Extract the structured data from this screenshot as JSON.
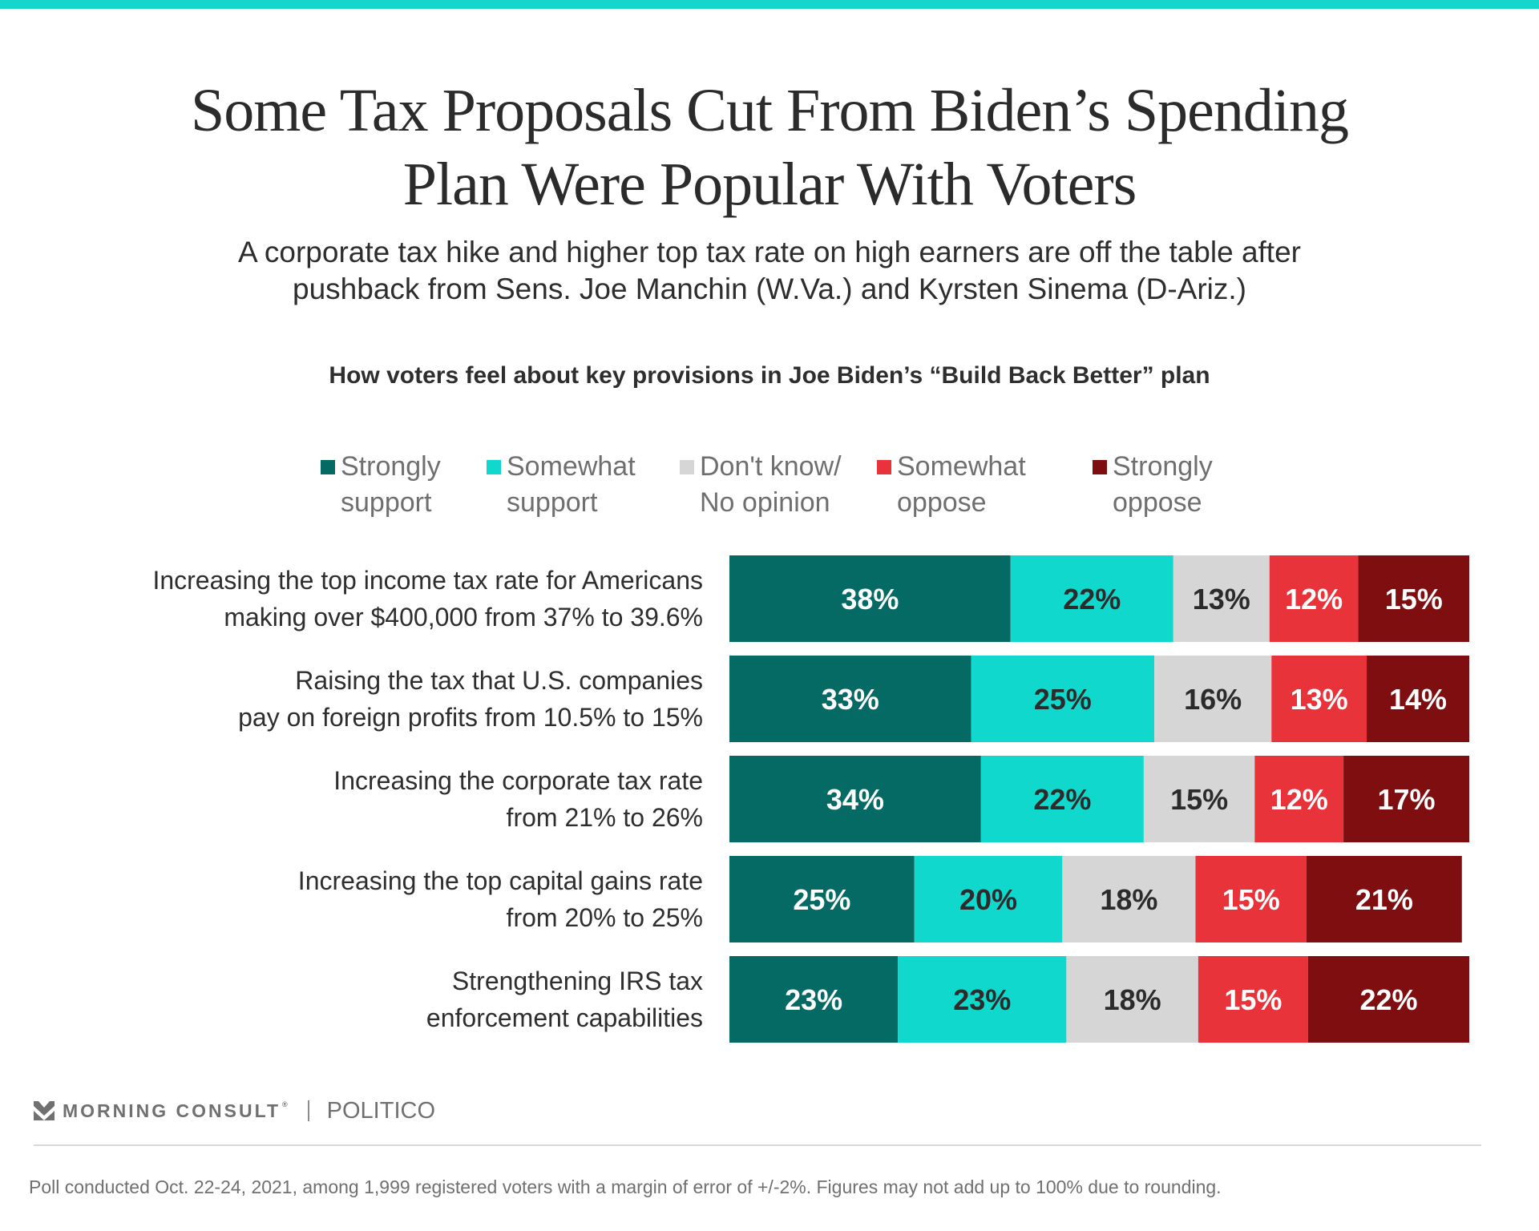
{
  "header": {
    "title_line1": "Some Tax Proposals Cut From Biden’s Spending",
    "title_line2": "Plan Were Popular With Voters",
    "subtitle_line1": "A corporate tax hike and higher top tax rate on high earners are off the table after",
    "subtitle_line2": "pushback from Sens. Joe Manchin (W.Va.) and Kyrsten Sinema (D-Ariz.)",
    "accent_color": "#14D6CC"
  },
  "chart_data": {
    "type": "bar",
    "orientation": "horizontal-stacked-100",
    "title": "How voters feel about key provisions in Joe Biden’s “Build Back Better” plan",
    "legend_position": "top",
    "xlim": [
      0,
      100
    ],
    "units": "%",
    "categories": [
      [
        "Increasing the top income tax rate for Americans",
        "making over $400,000 from 37% to 39.6%"
      ],
      [
        "Raising the tax that U.S. companies",
        "pay on foreign profits from 10.5% to 15%"
      ],
      [
        "Increasing the corporate tax rate",
        "from 21% to 26%"
      ],
      [
        "Increasing the top capital gains rate",
        "from 20% to 25%"
      ],
      [
        "Strengthening IRS tax",
        "enforcement capabilities"
      ]
    ],
    "series": [
      {
        "name": [
          "Strongly",
          "support"
        ],
        "color": "#066A64",
        "label_color": "#ffffff",
        "values": [
          38,
          33,
          34,
          25,
          23
        ]
      },
      {
        "name": [
          "Somewhat",
          "support"
        ],
        "color": "#10D8CC",
        "label_color": "#2b2b2b",
        "values": [
          22,
          25,
          22,
          20,
          23
        ]
      },
      {
        "name": [
          "Don't know/",
          "No opinion"
        ],
        "color": "#D6D6D6",
        "label_color": "#2b2b2b",
        "values": [
          13,
          16,
          15,
          18,
          18
        ]
      },
      {
        "name": [
          "Somewhat",
          "oppose"
        ],
        "color": "#E8333A",
        "label_color": "#ffffff",
        "values": [
          12,
          13,
          12,
          15,
          15
        ]
      },
      {
        "name": [
          "Strongly",
          "oppose"
        ],
        "color": "#7E0E10",
        "label_color": "#ffffff",
        "values": [
          15,
          14,
          17,
          21,
          22
        ]
      }
    ]
  },
  "footer": {
    "brand": "MORNING CONSULT",
    "registered_mark": "®",
    "partner": "POLITICO",
    "note": "Poll conducted Oct. 22-24, 2021, among 1,999 registered voters with a margin of error of +/-2%. Figures may not add up to 100% due to rounding."
  }
}
